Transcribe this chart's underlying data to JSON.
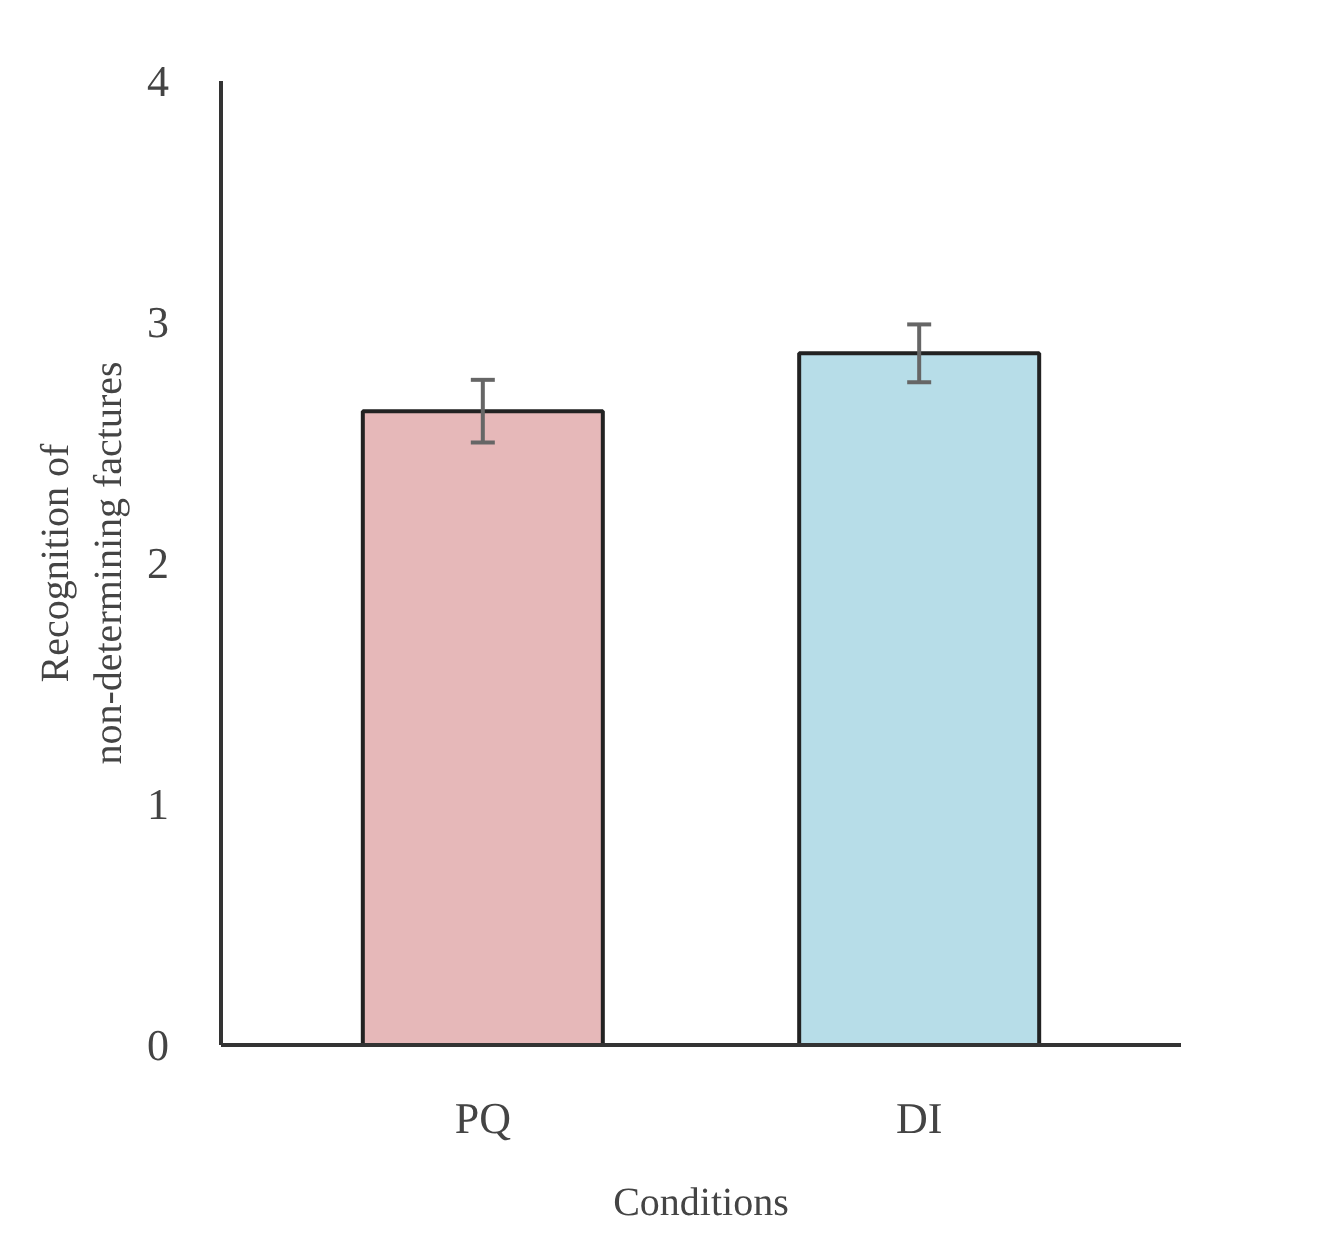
{
  "chart_data": {
    "type": "bar",
    "xlabel": "Conditions",
    "ylabel": "Recognition of\nnon-determining factures",
    "categories": [
      "PQ",
      "DI"
    ],
    "values": [
      2.63,
      2.87
    ],
    "colors": [
      "#e6b8b9",
      "#b7dde8"
    ],
    "errors": [
      0.13,
      0.12
    ],
    "ylim": [
      0,
      4
    ],
    "yticks": [
      0,
      1,
      2,
      3,
      4
    ],
    "grid": false
  }
}
